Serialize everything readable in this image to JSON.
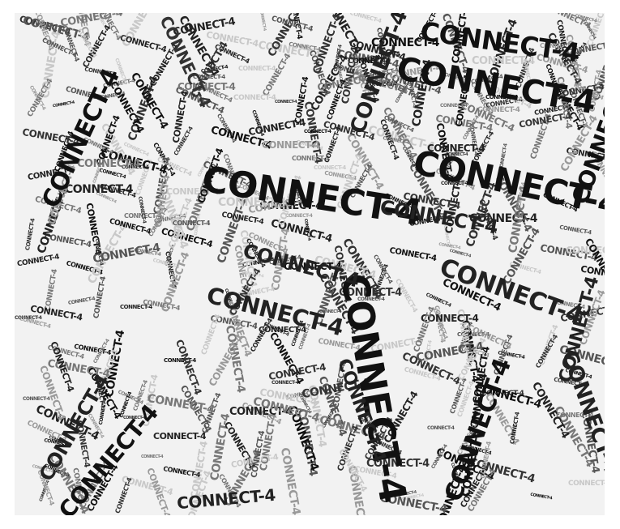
{
  "word_cloud": {
    "term": "CONNECT-4",
    "colors": {
      "background": "#f2f2f2",
      "page": "#ffffff",
      "ink_dark": "#111111",
      "ink_mid": "#333333",
      "ink_light": "#666666",
      "ink_faint": "#bdbdbd"
    }
  }
}
